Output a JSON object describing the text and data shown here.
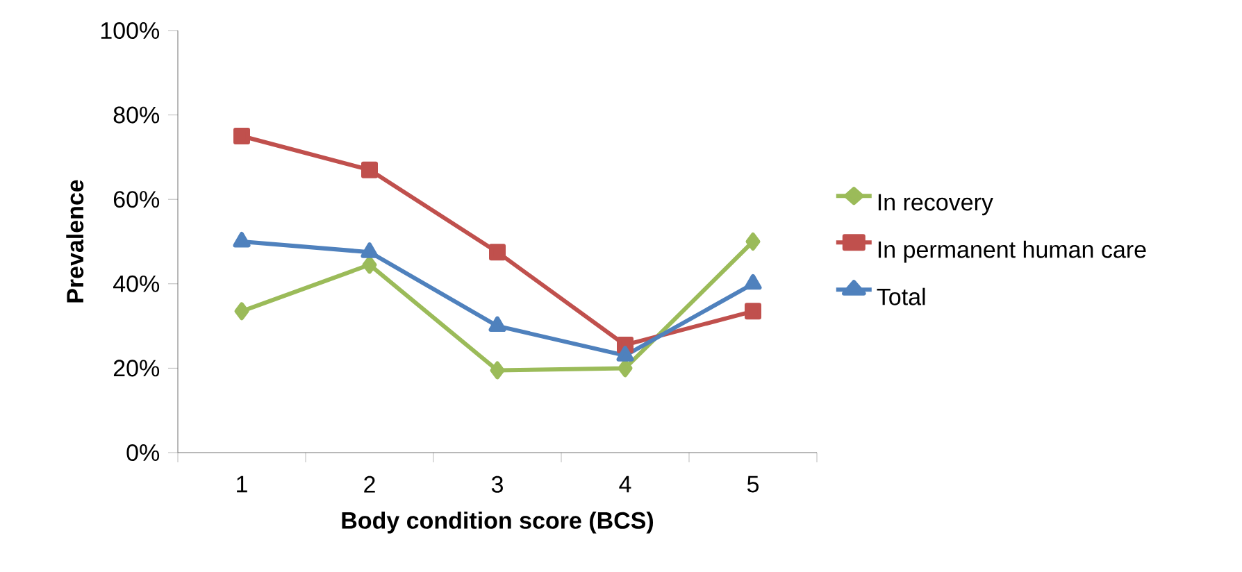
{
  "chart_data": {
    "type": "line",
    "xlabel": "Body condition score (BCS)",
    "ylabel": "Prevalence",
    "categories": [
      "1",
      "2",
      "3",
      "4",
      "5"
    ],
    "series": [
      {
        "name": "In recovery",
        "color": "#9bbb59",
        "marker": "diamond",
        "values": [
          33.5,
          44.5,
          19.5,
          20,
          50
        ]
      },
      {
        "name": "In permanent human care",
        "color": "#c0504d",
        "marker": "square",
        "values": [
          75,
          67,
          47.5,
          25.5,
          33.5
        ]
      },
      {
        "name": "Total",
        "color": "#4f81bd",
        "marker": "triangle",
        "values": [
          50,
          47.5,
          30,
          23,
          40
        ]
      }
    ],
    "ylim": [
      0,
      100
    ],
    "yticks": [
      {
        "value": 0,
        "label": "0%"
      },
      {
        "value": 20,
        "label": "20%"
      },
      {
        "value": 40,
        "label": "40%"
      },
      {
        "value": 60,
        "label": "60%"
      },
      {
        "value": 80,
        "label": "80%"
      },
      {
        "value": 100,
        "label": "100%"
      }
    ],
    "legend": "right",
    "grid": false,
    "line_style": "solid"
  }
}
